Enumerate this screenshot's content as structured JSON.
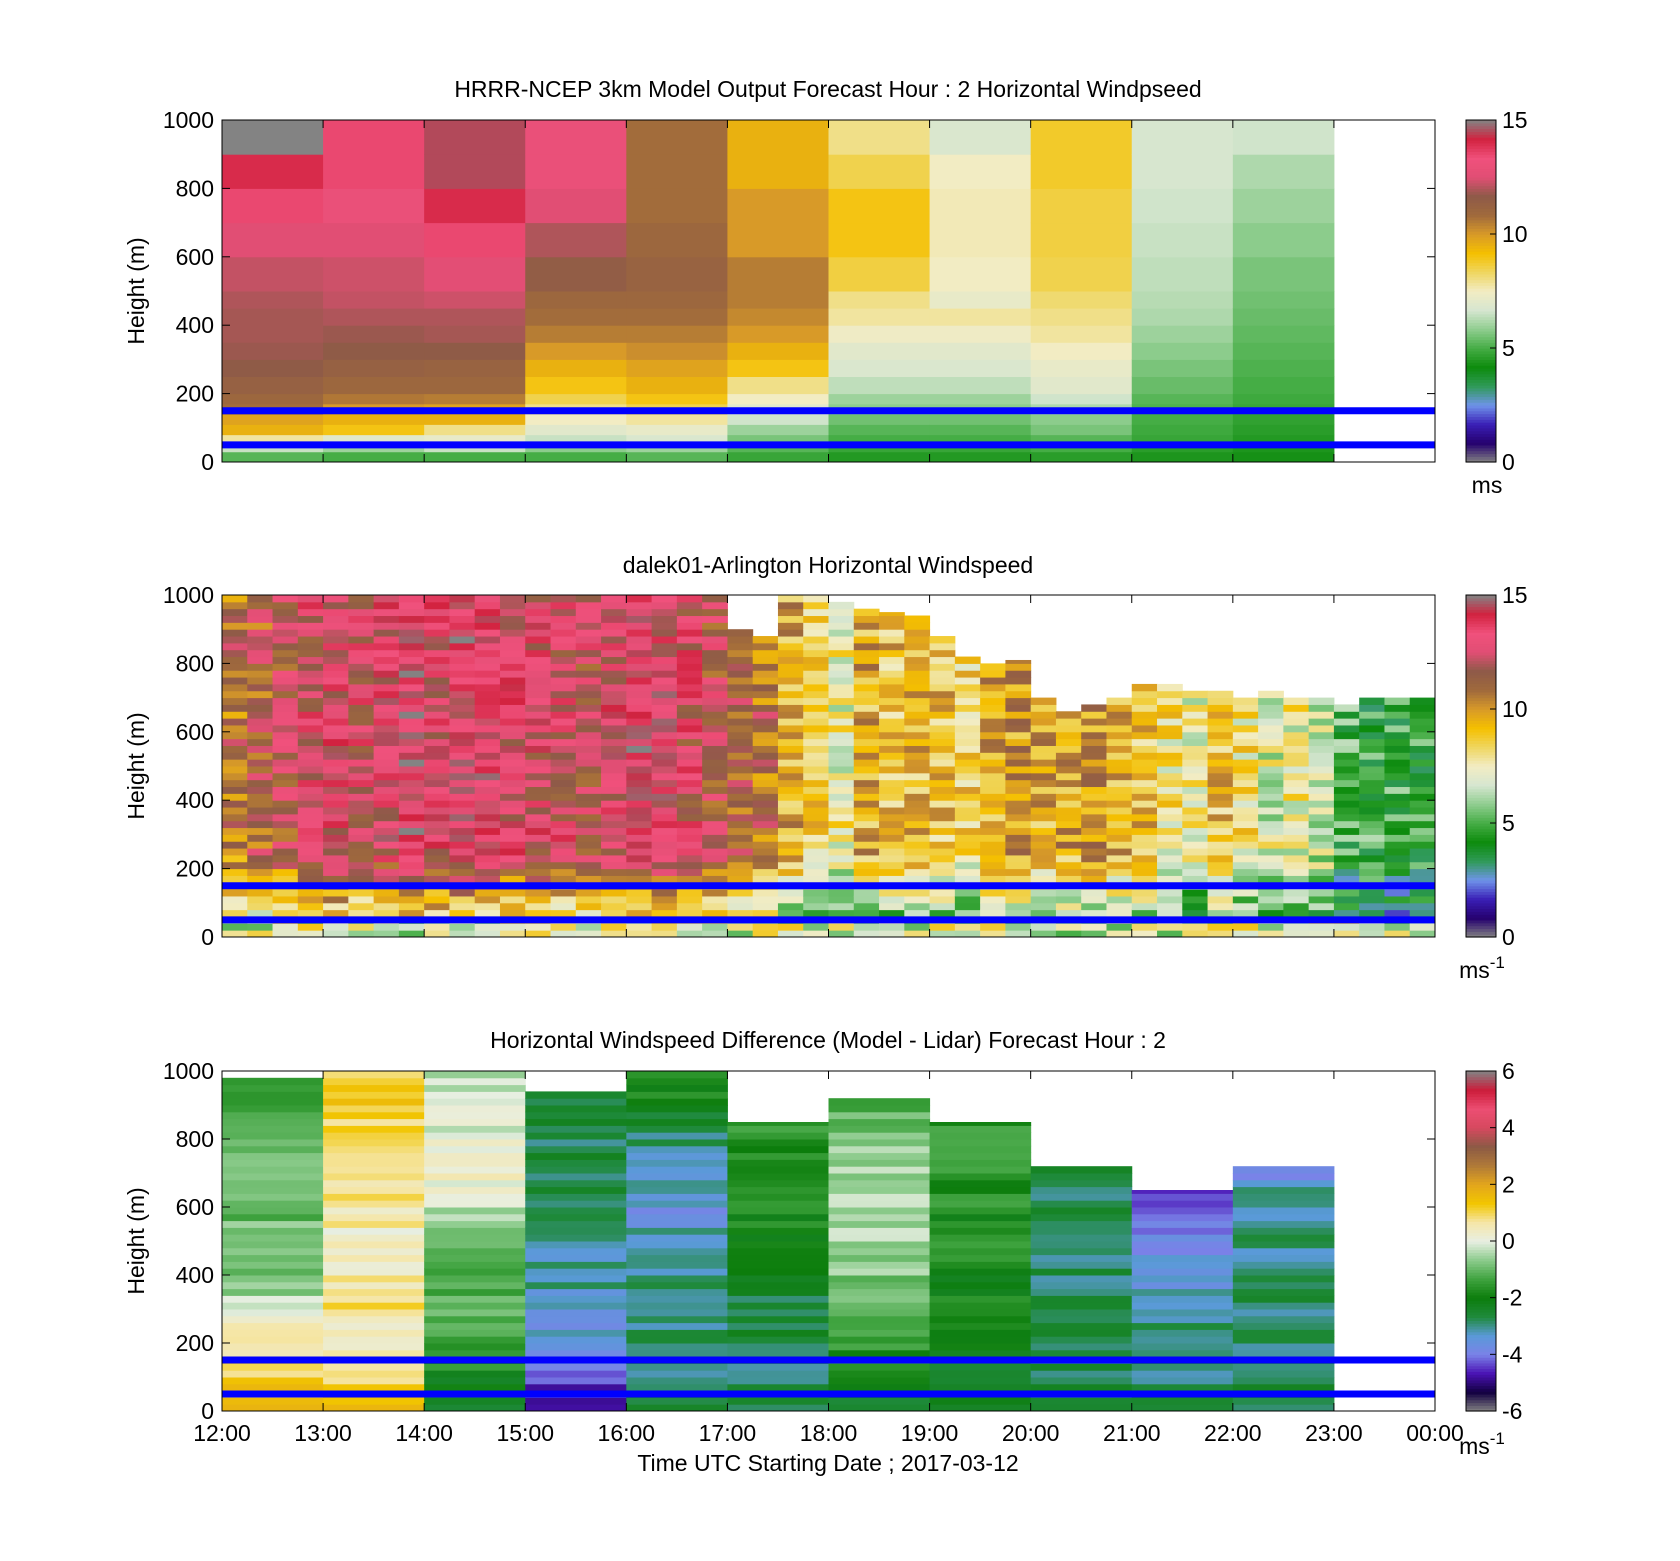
{
  "figure": {
    "time_axis": {
      "ticks": [
        "12:00",
        "13:00",
        "14:00",
        "15:00",
        "16:00",
        "17:00",
        "18:00",
        "19:00",
        "20:00",
        "21:00",
        "22:00",
        "23:00",
        "00:00"
      ],
      "label": "Time UTC  Starting Date ; 2017-03-12"
    },
    "reference_lines": {
      "color": "#0000ff",
      "heights_m": [
        150,
        50
      ]
    }
  },
  "chart_data": [
    {
      "type": "heatmap",
      "title": "HRRR-NCEP 3km Model Output   Forecast Hour : 2 Horizontal Windpseed",
      "ylabel": "Height (m)",
      "ylim": [
        0,
        1000
      ],
      "yticks": [
        "0",
        "200",
        "400",
        "600",
        "800",
        "1000"
      ],
      "show_x_tick_labels": false,
      "colorbar": {
        "min": 0,
        "max": 15,
        "ticks": [
          "0",
          "5",
          "10",
          "15"
        ],
        "unit_label": "ms",
        "unit_sup": "",
        "palette": "wind"
      },
      "x_start_hour": 12,
      "bin_hours": 1,
      "height_bins_m": [
        0,
        30,
        50,
        80,
        110,
        140,
        170,
        200,
        250,
        300,
        350,
        400,
        450,
        500,
        600,
        700,
        800,
        900,
        1000
      ],
      "columns": [
        [
          5.2,
          6.5,
          7.8,
          9.5,
          9.8,
          10.8,
          11.0,
          11.3,
          11.6,
          11.8,
          11.9,
          11.9,
          12.0,
          12.2,
          12.5,
          13.5,
          14.0,
          15.0
        ],
        [
          5.0,
          6.0,
          7.0,
          9.0,
          9.5,
          10.0,
          10.6,
          11.0,
          11.3,
          11.6,
          11.8,
          12.0,
          12.2,
          12.3,
          12.5,
          13.0,
          13.5,
          13.5
        ],
        [
          5.0,
          6.5,
          7.2,
          8.0,
          9.5,
          9.8,
          10.5,
          11.0,
          11.2,
          11.6,
          11.9,
          12.0,
          12.3,
          12.6,
          13.5,
          14.0,
          14.5,
          14.5
        ],
        [
          5.0,
          5.8,
          6.5,
          7.0,
          7.5,
          8.0,
          8.5,
          9.0,
          9.5,
          10.0,
          10.5,
          10.8,
          11.0,
          11.5,
          12.0,
          12.5,
          13.0,
          13.0
        ],
        [
          5.2,
          6.0,
          6.8,
          7.2,
          7.8,
          8.5,
          9.0,
          9.5,
          9.8,
          10.2,
          10.5,
          10.8,
          11.0,
          11.2,
          11.0,
          10.8,
          10.8,
          10.8
        ],
        [
          4.8,
          5.2,
          5.6,
          6.0,
          6.6,
          7.0,
          7.5,
          8.0,
          9.0,
          9.5,
          10.0,
          10.3,
          10.5,
          10.5,
          10.0,
          10.0,
          9.5,
          9.5
        ],
        [
          4.5,
          4.8,
          5.0,
          5.2,
          5.5,
          5.8,
          6.0,
          6.4,
          6.8,
          7.0,
          7.4,
          7.8,
          8.0,
          8.6,
          9.0,
          9.0,
          8.5,
          8.0
        ],
        [
          4.5,
          4.8,
          5.0,
          5.2,
          5.5,
          5.8,
          6.0,
          6.4,
          6.8,
          7.0,
          7.4,
          7.8,
          7.2,
          7.5,
          7.6,
          7.6,
          7.5,
          6.8
        ],
        [
          4.6,
          5.0,
          5.2,
          5.6,
          5.8,
          6.2,
          6.6,
          7.0,
          7.2,
          7.5,
          7.8,
          8.0,
          8.2,
          8.5,
          8.6,
          8.6,
          8.8,
          8.8
        ],
        [
          4.4,
          4.6,
          4.8,
          4.9,
          5.0,
          5.1,
          5.2,
          5.4,
          5.6,
          5.8,
          6.0,
          6.2,
          6.3,
          6.4,
          6.5,
          6.6,
          6.7,
          6.7
        ],
        [
          4.3,
          4.4,
          4.5,
          4.6,
          4.7,
          4.8,
          4.9,
          5.0,
          5.1,
          5.2,
          5.3,
          5.4,
          5.5,
          5.6,
          5.8,
          6.0,
          6.2,
          6.6
        ]
      ]
    },
    {
      "type": "heatmap",
      "title": "dalek01-Arlington  Horizontal Windspeed",
      "ylabel": "Height (m)",
      "ylim": [
        0,
        1000
      ],
      "yticks": [
        "0",
        "200",
        "400",
        "600",
        "800",
        "1000"
      ],
      "show_x_tick_labels": false,
      "colorbar": {
        "min": 0,
        "max": 15,
        "ticks": [
          "0",
          "5",
          "10",
          "15"
        ],
        "unit_label": "ms",
        "unit_sup": "-1",
        "palette": "wind"
      },
      "x_start_hour": 12,
      "bin_hours": 0.25,
      "sample_step_m": 20,
      "column_tops_m": [
        1000,
        1000,
        1000,
        1000,
        1000,
        1000,
        1000,
        1000,
        1000,
        1000,
        1000,
        1000,
        1000,
        1000,
        1000,
        1000,
        1000,
        1000,
        1000,
        1000,
        900,
        880,
        1000,
        1000,
        980,
        960,
        950,
        940,
        880,
        820,
        800,
        810,
        700,
        660,
        680,
        700,
        740,
        740,
        720,
        720,
        700,
        720,
        700,
        700,
        680,
        700,
        700,
        700
      ],
      "column_means": [
        11.0,
        11.5,
        12.0,
        12.5,
        13.0,
        12.5,
        13.2,
        13.5,
        13.0,
        13.5,
        13.5,
        13.0,
        12.8,
        12.5,
        12.2,
        13.0,
        13.5,
        13.2,
        12.5,
        12.0,
        11.5,
        11.0,
        9.5,
        8.5,
        7.5,
        9.5,
        9.0,
        9.2,
        9.0,
        8.5,
        9.5,
        10.0,
        9.5,
        9.8,
        10.0,
        9.5,
        9.0,
        8.0,
        7.5,
        9.0,
        8.0,
        7.0,
        7.5,
        7.0,
        5.0,
        4.8,
        4.6,
        4.8
      ]
    },
    {
      "type": "heatmap",
      "title": "Horizontal Windspeed Difference (Model - Lidar) Forecast Hour : 2",
      "ylabel": "Height (m)",
      "ylim": [
        0,
        1000
      ],
      "yticks": [
        "0",
        "200",
        "400",
        "600",
        "800",
        "1000"
      ],
      "show_x_tick_labels": true,
      "colorbar": {
        "min": -6,
        "max": 6,
        "ticks": [
          "-6",
          "-4",
          "-2",
          "0",
          "2",
          "4",
          "6"
        ],
        "unit_label": "ms",
        "unit_sup": "-1",
        "palette": "diff"
      },
      "x_start_hour": 12,
      "bin_hours": 1,
      "sample_step_m": 20,
      "column_tops_m": [
        980,
        1000,
        1000,
        940,
        1000,
        850,
        920,
        850,
        720,
        650,
        720
      ],
      "column_profiles": [
        [
          [
            0,
            1.5
          ],
          [
            150,
            1.0
          ],
          [
            300,
            -0.3
          ],
          [
            400,
            -0.8
          ],
          [
            1000,
            -1.3
          ]
        ],
        [
          [
            0,
            1.8
          ],
          [
            150,
            0.3
          ],
          [
            300,
            0.8
          ],
          [
            500,
            0.4
          ],
          [
            1000,
            1.3
          ]
        ],
        [
          [
            0,
            -2.5
          ],
          [
            150,
            -1.5
          ],
          [
            500,
            -0.8
          ],
          [
            700,
            0.3
          ],
          [
            1000,
            -0.5
          ]
        ],
        [
          [
            0,
            -5.0
          ],
          [
            150,
            -3.8
          ],
          [
            300,
            -3.2
          ],
          [
            700,
            -2.6
          ],
          [
            1000,
            -2.8
          ]
        ],
        [
          [
            0,
            -2.8
          ],
          [
            400,
            -2.9
          ],
          [
            600,
            -3.6
          ],
          [
            800,
            -2.7
          ],
          [
            1000,
            -1.5
          ]
        ],
        [
          [
            0,
            -2.8
          ],
          [
            300,
            -2.6
          ],
          [
            600,
            -1.8
          ],
          [
            1000,
            -1.3
          ]
        ],
        [
          [
            0,
            -2.5
          ],
          [
            300,
            -1.0
          ],
          [
            500,
            -0.5
          ],
          [
            800,
            -0.7
          ],
          [
            1000,
            -1.5
          ]
        ],
        [
          [
            0,
            -2.6
          ],
          [
            400,
            -1.8
          ],
          [
            1000,
            -1.6
          ]
        ],
        [
          [
            0,
            -2.7
          ],
          [
            1000,
            -2.8
          ]
        ],
        [
          [
            0,
            -2.8
          ],
          [
            300,
            -3.0
          ],
          [
            450,
            -3.6
          ],
          [
            600,
            -4.2
          ],
          [
            1000,
            -4.5
          ]
        ],
        [
          [
            0,
            -2.7
          ],
          [
            300,
            -2.8
          ],
          [
            600,
            -3.0
          ],
          [
            700,
            -3.7
          ],
          [
            1000,
            -3.9
          ]
        ]
      ]
    }
  ]
}
